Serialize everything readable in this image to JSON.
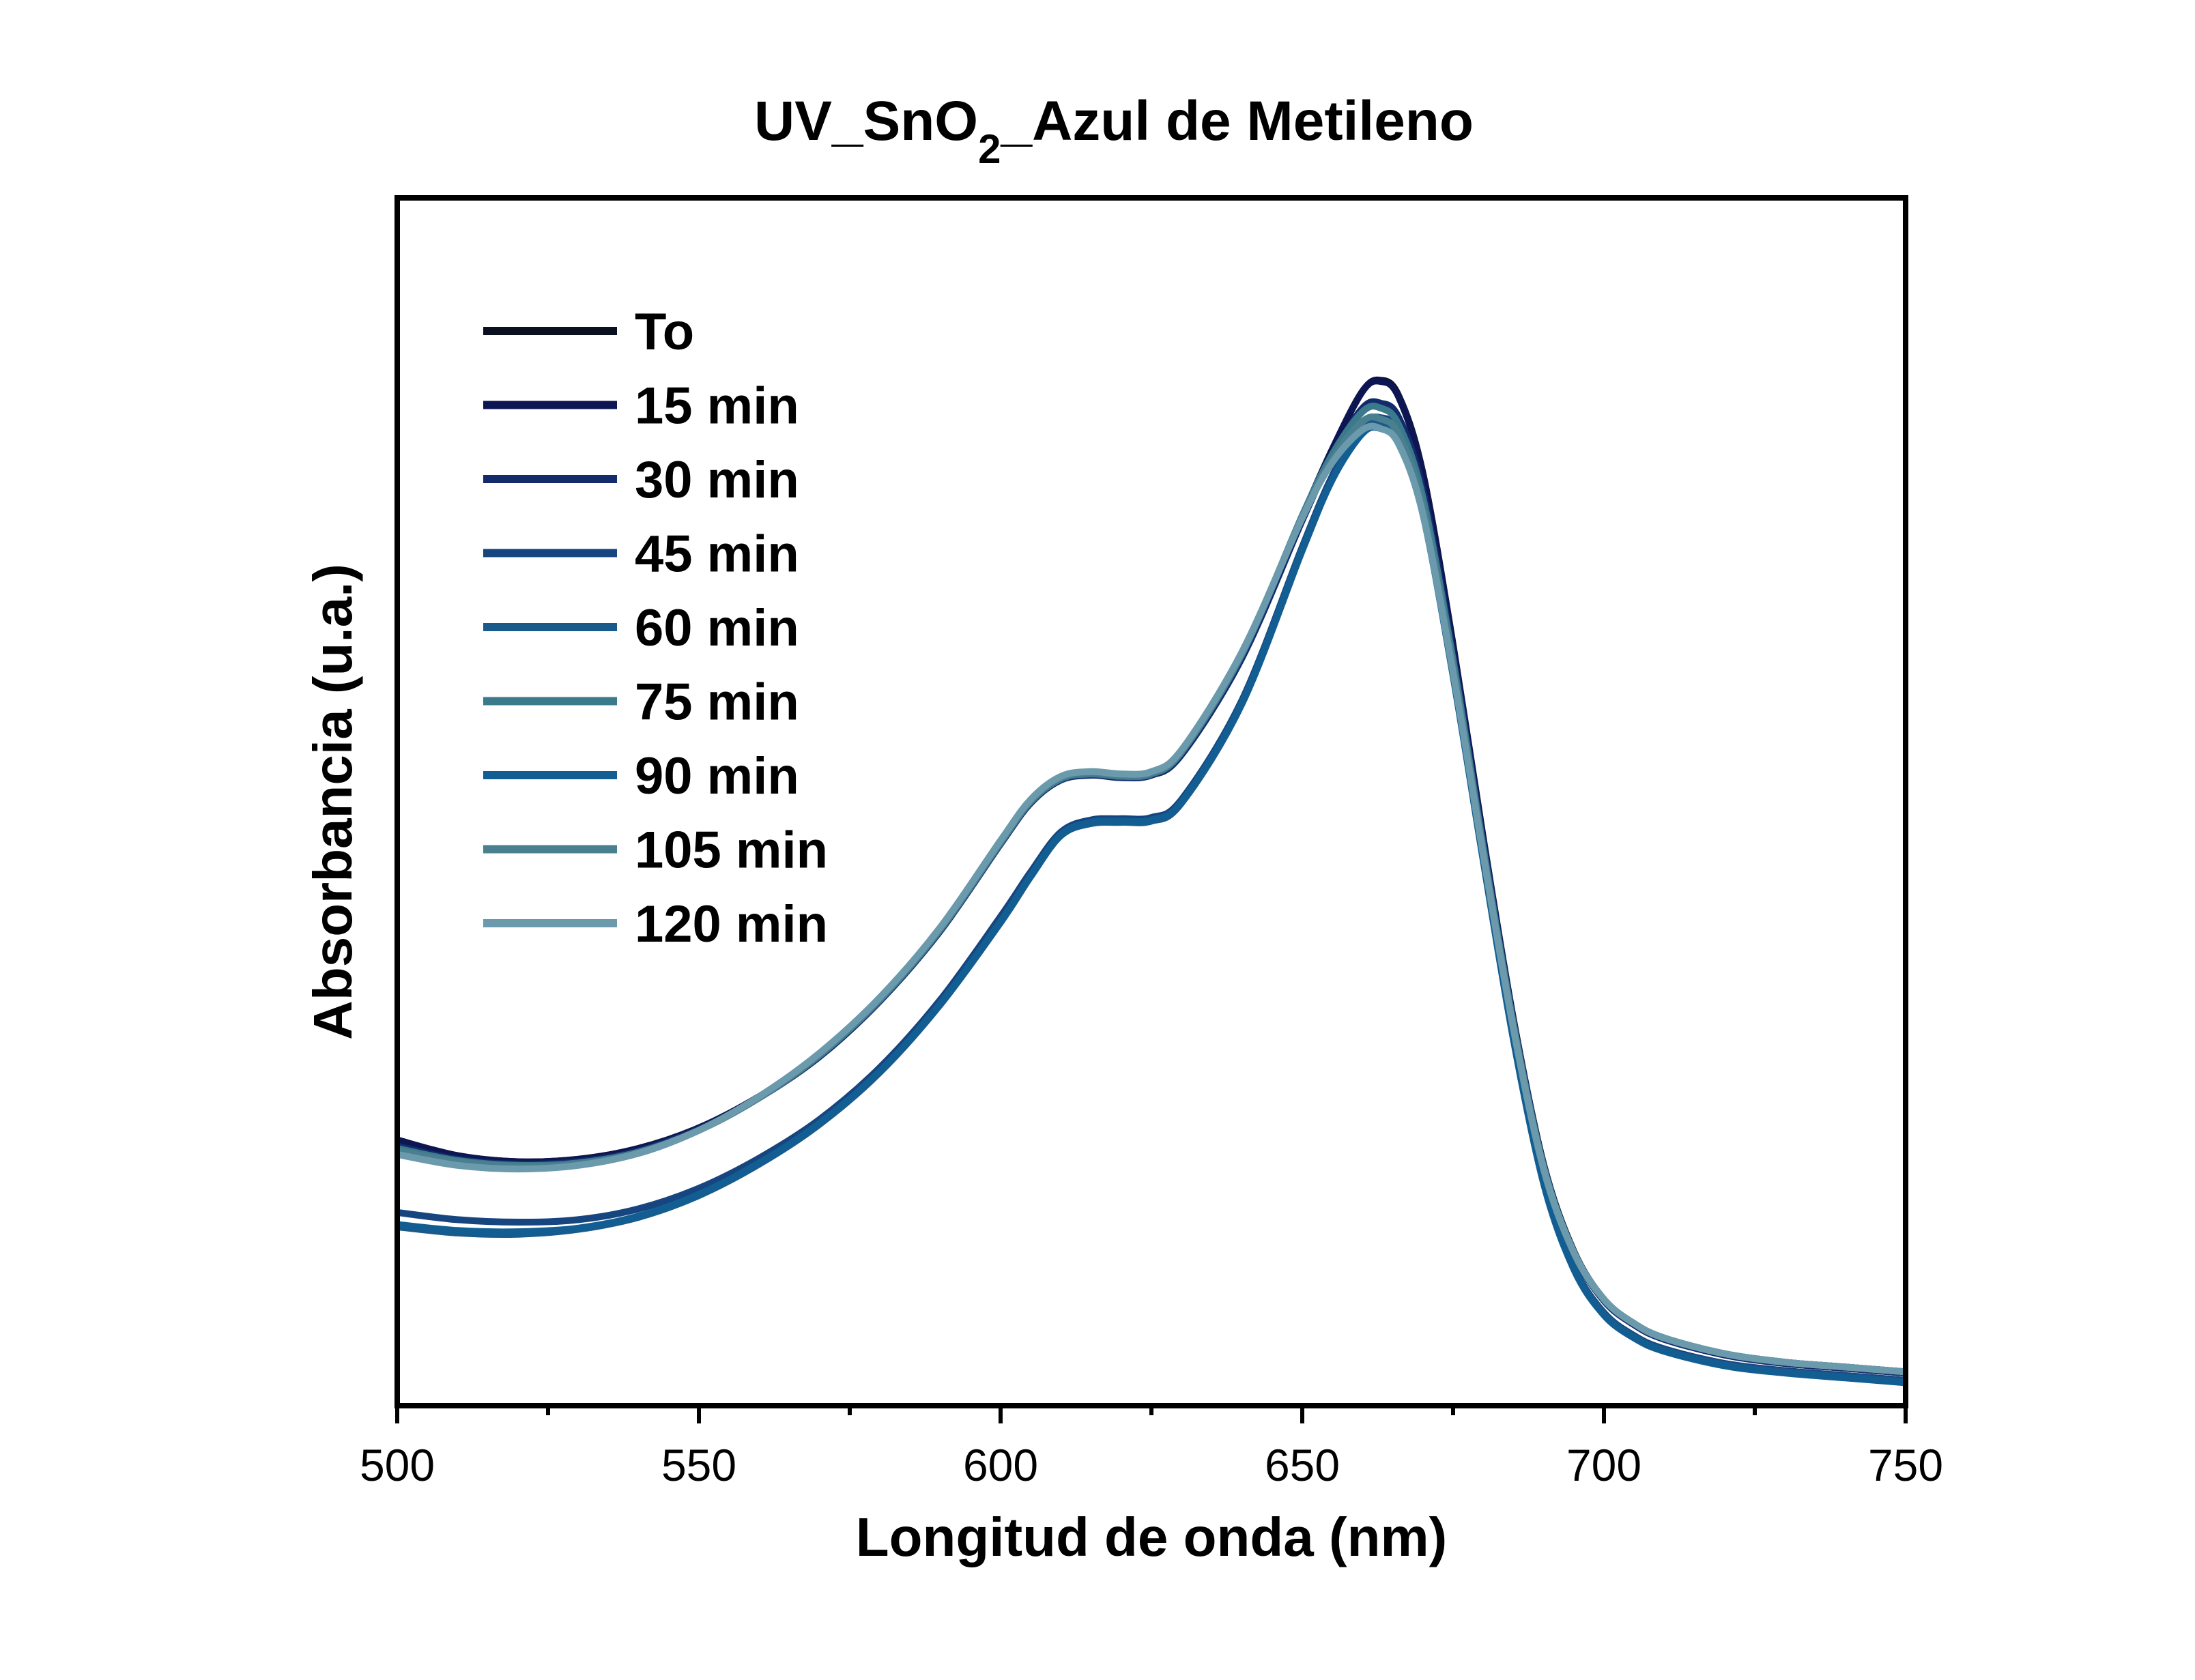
{
  "chart_data": {
    "type": "line",
    "title": "UV_SnO₂_Azul de Metileno",
    "title_main": "UV_SnO",
    "title_sub": "2",
    "title_rest": "_Azul de Metileno",
    "xlabel": "Longitud de onda (nm)",
    "ylabel": "Absorbancia (u.a.)",
    "xlim": [
      500,
      750
    ],
    "ylim": [
      0,
      1.0
    ],
    "y_ticks_shown": false,
    "x_ticks": [
      500,
      550,
      600,
      650,
      700,
      750
    ],
    "x_tick_labels": [
      "500",
      "550",
      "600",
      "650",
      "700",
      "750"
    ],
    "grid": false,
    "legend_position": "top-left",
    "x": [
      500,
      510,
      520,
      530,
      540,
      550,
      560,
      570,
      580,
      590,
      600,
      605,
      610,
      615,
      620,
      625,
      630,
      640,
      650,
      655,
      660,
      663,
      666,
      670,
      675,
      680,
      685,
      690,
      695,
      700,
      705,
      710,
      720,
      730,
      740,
      750
    ],
    "series": [
      {
        "name": "To",
        "color": "#0b1020",
        "values": [
          0.22,
          0.207,
          0.202,
          0.204,
          0.213,
          0.23,
          0.256,
          0.29,
          0.336,
          0.394,
          0.466,
          0.5,
          0.519,
          0.523,
          0.521,
          0.523,
          0.54,
          0.62,
          0.736,
          0.792,
          0.84,
          0.849,
          0.836,
          0.772,
          0.63,
          0.47,
          0.32,
          0.2,
          0.128,
          0.088,
          0.068,
          0.056,
          0.043,
          0.036,
          0.032,
          0.028
        ]
      },
      {
        "name": "15 min",
        "color": "#0d1652",
        "values": [
          0.22,
          0.207,
          0.202,
          0.204,
          0.213,
          0.23,
          0.256,
          0.29,
          0.336,
          0.394,
          0.466,
          0.5,
          0.519,
          0.523,
          0.521,
          0.523,
          0.54,
          0.62,
          0.736,
          0.792,
          0.84,
          0.848,
          0.835,
          0.771,
          0.629,
          0.469,
          0.319,
          0.199,
          0.127,
          0.087,
          0.067,
          0.055,
          0.042,
          0.035,
          0.031,
          0.027
        ]
      },
      {
        "name": "30 min",
        "color": "#132a6b",
        "values": [
          0.215,
          0.204,
          0.2,
          0.202,
          0.211,
          0.229,
          0.255,
          0.289,
          0.335,
          0.393,
          0.465,
          0.499,
          0.518,
          0.522,
          0.52,
          0.522,
          0.539,
          0.619,
          0.733,
          0.786,
          0.826,
          0.83,
          0.818,
          0.758,
          0.622,
          0.466,
          0.318,
          0.199,
          0.127,
          0.087,
          0.067,
          0.055,
          0.042,
          0.035,
          0.031,
          0.027
        ]
      },
      {
        "name": "45 min",
        "color": "#16457f",
        "values": [
          0.16,
          0.154,
          0.152,
          0.154,
          0.163,
          0.18,
          0.205,
          0.237,
          0.28,
          0.336,
          0.405,
          0.442,
          0.475,
          0.485,
          0.486,
          0.487,
          0.502,
          0.584,
          0.711,
          0.77,
          0.812,
          0.818,
          0.806,
          0.746,
          0.61,
          0.455,
          0.306,
          0.186,
          0.115,
          0.077,
          0.058,
          0.047,
          0.035,
          0.029,
          0.025,
          0.021
        ]
      },
      {
        "name": "60 min",
        "color": "#1a5a8a",
        "values": [
          0.148,
          0.143,
          0.142,
          0.146,
          0.156,
          0.174,
          0.2,
          0.233,
          0.276,
          0.332,
          0.4,
          0.438,
          0.472,
          0.482,
          0.483,
          0.484,
          0.499,
          0.581,
          0.708,
          0.767,
          0.807,
          0.812,
          0.8,
          0.741,
          0.606,
          0.452,
          0.304,
          0.185,
          0.114,
          0.076,
          0.057,
          0.046,
          0.034,
          0.028,
          0.024,
          0.02
        ]
      },
      {
        "name": "75 min",
        "color": "#3b7a8d",
        "values": [
          0.213,
          0.203,
          0.199,
          0.201,
          0.21,
          0.228,
          0.255,
          0.29,
          0.336,
          0.394,
          0.466,
          0.5,
          0.519,
          0.523,
          0.521,
          0.523,
          0.541,
          0.622,
          0.737,
          0.788,
          0.823,
          0.826,
          0.812,
          0.752,
          0.617,
          0.462,
          0.316,
          0.198,
          0.127,
          0.088,
          0.068,
          0.056,
          0.043,
          0.036,
          0.032,
          0.028
        ]
      },
      {
        "name": "90 min",
        "color": "#125e92",
        "values": [
          0.15,
          0.145,
          0.144,
          0.147,
          0.157,
          0.175,
          0.201,
          0.234,
          0.277,
          0.333,
          0.401,
          0.439,
          0.473,
          0.483,
          0.484,
          0.485,
          0.5,
          0.582,
          0.709,
          0.767,
          0.805,
          0.809,
          0.797,
          0.738,
          0.604,
          0.451,
          0.303,
          0.184,
          0.113,
          0.075,
          0.056,
          0.045,
          0.033,
          0.027,
          0.023,
          0.019
        ]
      },
      {
        "name": "105 min",
        "color": "#4a7f90",
        "values": [
          0.211,
          0.202,
          0.198,
          0.2,
          0.209,
          0.228,
          0.255,
          0.291,
          0.337,
          0.395,
          0.467,
          0.501,
          0.52,
          0.524,
          0.522,
          0.524,
          0.542,
          0.623,
          0.736,
          0.784,
          0.815,
          0.817,
          0.804,
          0.745,
          0.612,
          0.459,
          0.314,
          0.197,
          0.127,
          0.088,
          0.068,
          0.056,
          0.043,
          0.036,
          0.032,
          0.028
        ]
      },
      {
        "name": "120 min",
        "color": "#6a9aac",
        "values": [
          0.208,
          0.199,
          0.196,
          0.199,
          0.209,
          0.228,
          0.256,
          0.292,
          0.338,
          0.396,
          0.468,
          0.502,
          0.521,
          0.525,
          0.523,
          0.525,
          0.543,
          0.624,
          0.735,
          0.781,
          0.808,
          0.809,
          0.796,
          0.738,
          0.607,
          0.456,
          0.312,
          0.196,
          0.127,
          0.088,
          0.068,
          0.056,
          0.043,
          0.036,
          0.032,
          0.028
        ]
      }
    ]
  }
}
